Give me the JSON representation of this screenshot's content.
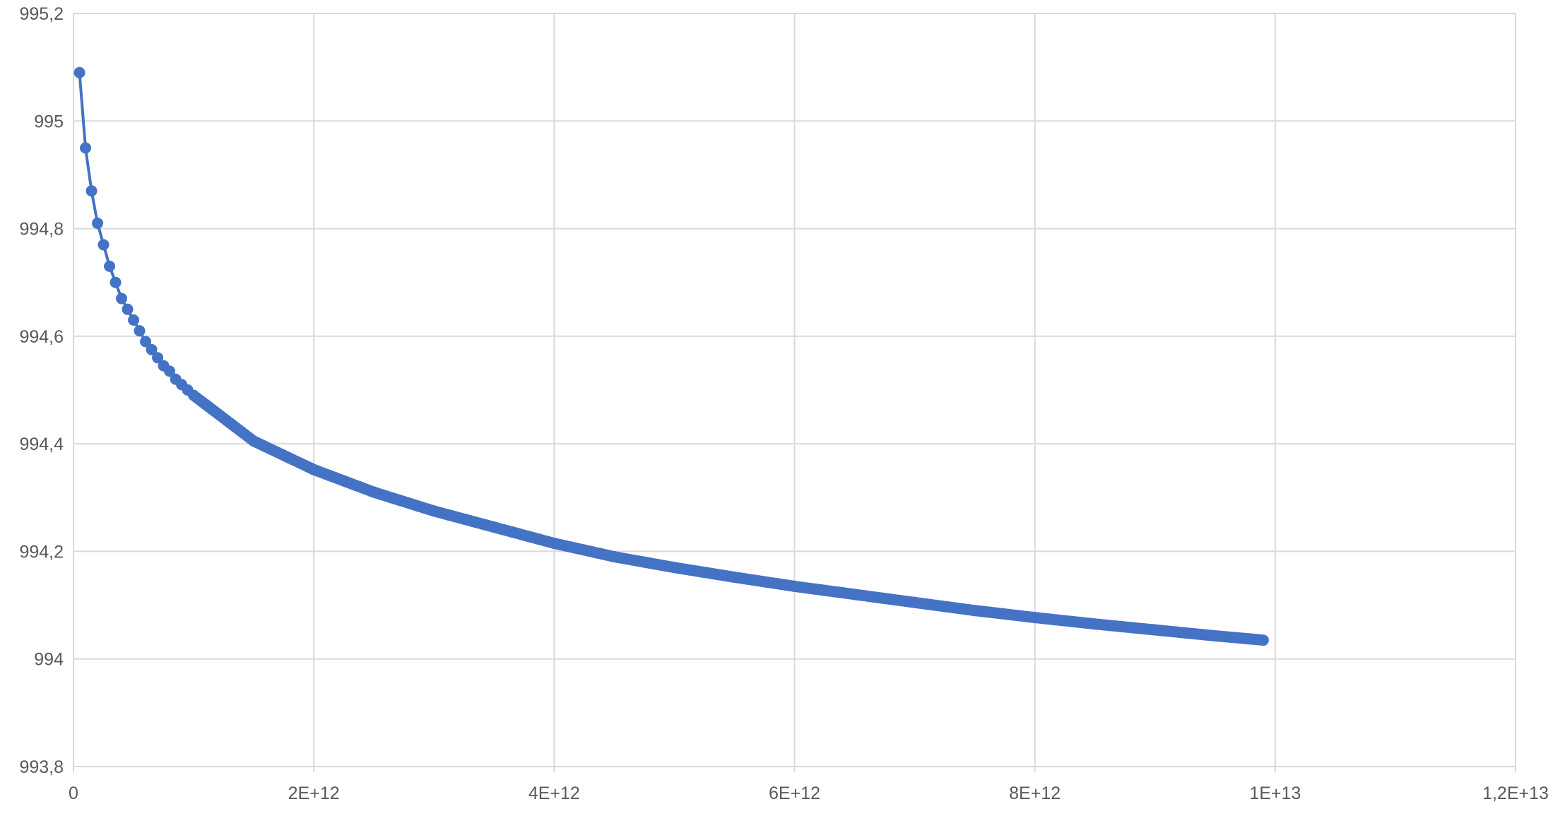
{
  "chart_data": {
    "type": "scatter",
    "title": "",
    "xlabel": "",
    "ylabel": "",
    "xlim": [
      0,
      12000000000000.0
    ],
    "ylim": [
      993.8,
      995.2
    ],
    "x_ticks": [
      0,
      2000000000000.0,
      4000000000000.0,
      6000000000000.0,
      8000000000000.0,
      10000000000000.0,
      12000000000000.0
    ],
    "x_tick_labels": [
      "0",
      "2E+12",
      "4E+12",
      "6E+12",
      "8E+12",
      "1E+13",
      "1,2E+13"
    ],
    "y_ticks": [
      993.8,
      994,
      994.2,
      994.4,
      994.6,
      994.8,
      995,
      995.2
    ],
    "y_tick_labels": [
      "993,8",
      "994",
      "994,2",
      "994,4",
      "994,6",
      "994,8",
      "995",
      "995,2"
    ],
    "grid": true,
    "legend": "none",
    "colors": {
      "series": "#4472C4",
      "grid": "#D9D9D9",
      "tick_text": "#595959"
    },
    "series": [
      {
        "line": true,
        "markers": true,
        "x": [
          50000000000.0,
          100000000000.0,
          150000000000.0,
          200000000000.0,
          250000000000.0,
          300000000000.0,
          350000000000.0,
          400000000000.0,
          450000000000.0,
          500000000000.0,
          550000000000.0,
          600000000000.0,
          650000000000.0,
          700000000000.0,
          750000000000.0,
          800000000000.0,
          850000000000.0,
          900000000000.0,
          950000000000.0,
          1000000000000.0,
          1500000000000.0,
          2000000000000.0,
          2500000000000.0,
          3000000000000.0,
          3500000000000.0,
          4000000000000.0,
          4500000000000.0,
          5000000000000.0,
          5500000000000.0,
          6000000000000.0,
          6500000000000.0,
          7000000000000.0,
          7500000000000.0,
          8000000000000.0,
          8500000000000.0,
          9000000000000.0,
          9500000000000.0,
          9900000000000.0
        ],
        "y": [
          995.09,
          994.95,
          994.87,
          994.81,
          994.77,
          994.73,
          994.7,
          994.67,
          994.65,
          994.63,
          994.61,
          994.59,
          994.575,
          994.56,
          994.545,
          994.535,
          994.52,
          994.51,
          994.5,
          994.49,
          994.405,
          994.352,
          994.31,
          994.275,
          994.245,
          994.215,
          994.19,
          994.17,
          994.152,
          994.135,
          994.12,
          994.105,
          994.09,
          994.077,
          994.065,
          994.054,
          994.043,
          994.035
        ]
      }
    ]
  }
}
